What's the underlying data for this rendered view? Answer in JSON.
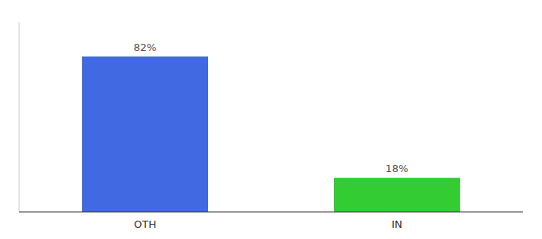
{
  "chart_data": {
    "type": "bar",
    "categories": [
      "OTH",
      "IN"
    ],
    "values": [
      82,
      18
    ],
    "value_labels": [
      "82%",
      "18%"
    ],
    "colors": [
      "#4169e1",
      "#33cc33"
    ],
    "ylim": [
      0,
      100
    ],
    "data_labels": true,
    "tick_labels": "x",
    "grid": false
  }
}
